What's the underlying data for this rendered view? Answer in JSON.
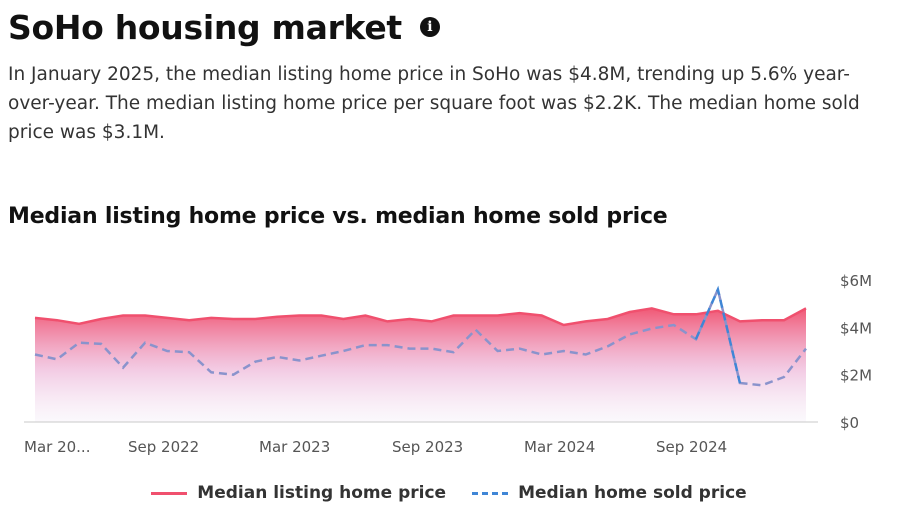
{
  "header": {
    "title": "SoHo housing market",
    "info_icon": "info-icon",
    "summary": "In January 2025, the median listing home price in SoHo was $4.8M, trending up 5.6% year-over-year. The median listing home price per square foot was $2.2K. The median home sold price was $3.1M."
  },
  "colors": {
    "listing": "#f0506e",
    "sold": "#3f86d6"
  },
  "chart_data": {
    "type": "line",
    "title": "Median listing home price vs. median home sold price",
    "x_tick_labels": [
      "Mar 20...",
      "Sep 2022",
      "Mar 2023",
      "Sep 2023",
      "Mar 2024",
      "Sep 2024"
    ],
    "y_tick_labels": [
      "$0",
      "$2M",
      "$4M",
      "$6M"
    ],
    "ylim": [
      0,
      6
    ],
    "grid": false,
    "legend_position": "bottom",
    "series": [
      {
        "name": "Median listing home price",
        "style": "solid-area",
        "values": [
          4.4,
          4.3,
          4.15,
          4.35,
          4.5,
          4.5,
          4.4,
          4.3,
          4.4,
          4.35,
          4.35,
          4.45,
          4.5,
          4.5,
          4.35,
          4.5,
          4.25,
          4.35,
          4.25,
          4.5,
          4.5,
          4.5,
          4.6,
          4.5,
          4.1,
          4.25,
          4.35,
          4.65,
          4.8,
          4.55,
          4.55,
          4.7,
          4.25,
          4.3,
          4.3,
          4.8
        ]
      },
      {
        "name": "Median home sold price",
        "style": "dashed",
        "values": [
          2.85,
          2.65,
          3.35,
          3.3,
          2.3,
          3.35,
          3.0,
          2.95,
          2.1,
          2.0,
          2.55,
          2.75,
          2.6,
          2.8,
          3.0,
          3.25,
          3.25,
          3.1,
          3.1,
          2.95,
          3.9,
          3.0,
          3.1,
          2.85,
          3.0,
          2.85,
          3.2,
          3.7,
          3.95,
          4.1,
          3.5,
          5.6,
          1.65,
          1.55,
          1.9,
          3.1
        ]
      }
    ]
  },
  "legend": {
    "listing_label": "Median listing home price",
    "sold_label": "Median home sold price"
  }
}
